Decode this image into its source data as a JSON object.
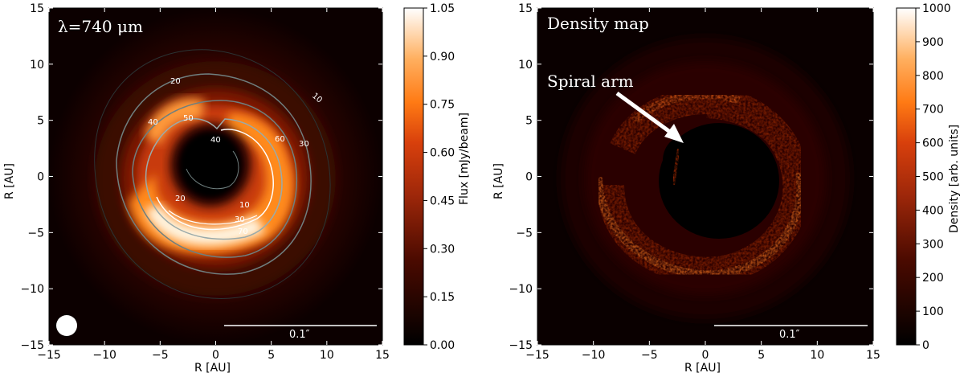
{
  "chart_data": [
    {
      "type": "heatmap",
      "overlay_title": "λ=740 μm",
      "xlabel": "R [AU]",
      "ylabel": "R [AU]",
      "xlim": [
        -15,
        15
      ],
      "ylim": [
        -15,
        15
      ],
      "x_ticks": [
        "−15",
        "−10",
        "−5",
        "0",
        "5",
        "10",
        "15"
      ],
      "y_ticks": [
        "15",
        "10",
        "5",
        "0",
        "−5",
        "−10",
        "−15"
      ],
      "colorbar": {
        "label": "Flux [mJy/beam]",
        "range": [
          0.0,
          1.05
        ],
        "ticks": [
          "1.05",
          "0.90",
          "0.75",
          "0.60",
          "0.45",
          "0.30",
          "0.15",
          "0.00"
        ],
        "colormap": "gist_heat"
      },
      "contour_levels": [
        "10",
        "20",
        "30",
        "40",
        "50",
        "60",
        "70"
      ],
      "scalebar_label": "0.1″",
      "beam": "filled white circle, lower-left"
    },
    {
      "type": "heatmap",
      "overlay_title": "Density map",
      "annotation": "Spiral arm",
      "xlabel": "R [AU]",
      "ylabel": "R [AU]",
      "xlim": [
        -15,
        15
      ],
      "ylim": [
        -15,
        15
      ],
      "x_ticks": [
        "−15",
        "−10",
        "−5",
        "0",
        "5",
        "10",
        "15"
      ],
      "y_ticks": [
        "15",
        "10",
        "5",
        "0",
        "−5",
        "−10",
        "−15"
      ],
      "colorbar": {
        "label": "Density [arb. units]",
        "range": [
          0,
          1000
        ],
        "ticks": [
          "1000",
          "900",
          "800",
          "700",
          "600",
          "500",
          "400",
          "300",
          "200",
          "100",
          "0"
        ],
        "colormap": "gist_heat"
      },
      "scalebar_label": "0.1″"
    }
  ],
  "colors": {
    "background": "#ffffff",
    "map_dark": "#000000",
    "map_mid": "#c0300a",
    "map_bright": "#ff8c1a",
    "map_peak": "#fffaf0",
    "contour_line": "#6f7f7f"
  }
}
